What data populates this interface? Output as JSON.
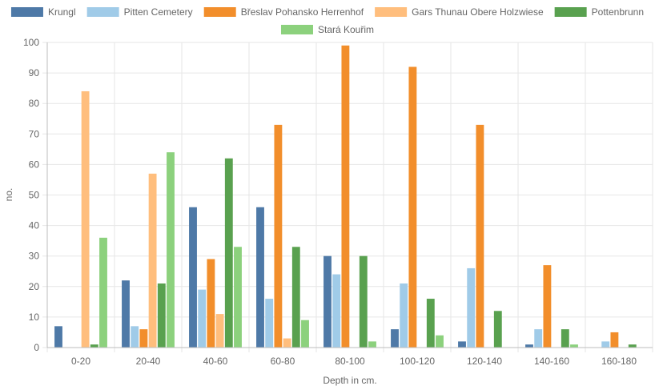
{
  "chart_data": {
    "type": "bar",
    "title": "",
    "xlabel": "Depth in cm.",
    "ylabel": "no.",
    "ylim": [
      0,
      100
    ],
    "yticks": [
      0,
      10,
      20,
      30,
      40,
      50,
      60,
      70,
      80,
      90,
      100
    ],
    "grid": true,
    "legend_position": "top",
    "categories": [
      "0-20",
      "20-40",
      "40-60",
      "60-80",
      "80-100",
      "100-120",
      "120-140",
      "140-160",
      "160-180"
    ],
    "series": [
      {
        "name": "Krungl",
        "color": "#4e79a7",
        "values": [
          7,
          22,
          46,
          46,
          30,
          6,
          2,
          1,
          0
        ]
      },
      {
        "name": "Pitten Cemetery",
        "color": "#a0cbe8",
        "values": [
          0,
          7,
          19,
          16,
          24,
          21,
          26,
          6,
          2
        ]
      },
      {
        "name": "Břeslav Pohansko Herrenhof",
        "color": "#f28e2b",
        "values": [
          0,
          6,
          29,
          73,
          99,
          92,
          73,
          27,
          5
        ]
      },
      {
        "name": "Gars Thunau Obere Holzwiese",
        "color": "#ffbe7d",
        "values": [
          84,
          57,
          11,
          3,
          0,
          0,
          0,
          0,
          0
        ]
      },
      {
        "name": "Pottenbrunn",
        "color": "#59a14f",
        "values": [
          1,
          21,
          62,
          33,
          30,
          16,
          12,
          6,
          1
        ]
      },
      {
        "name": "Stará Kouřim",
        "color": "#8cd17d",
        "values": [
          36,
          64,
          33,
          9,
          2,
          4,
          0,
          1,
          0
        ]
      }
    ]
  }
}
